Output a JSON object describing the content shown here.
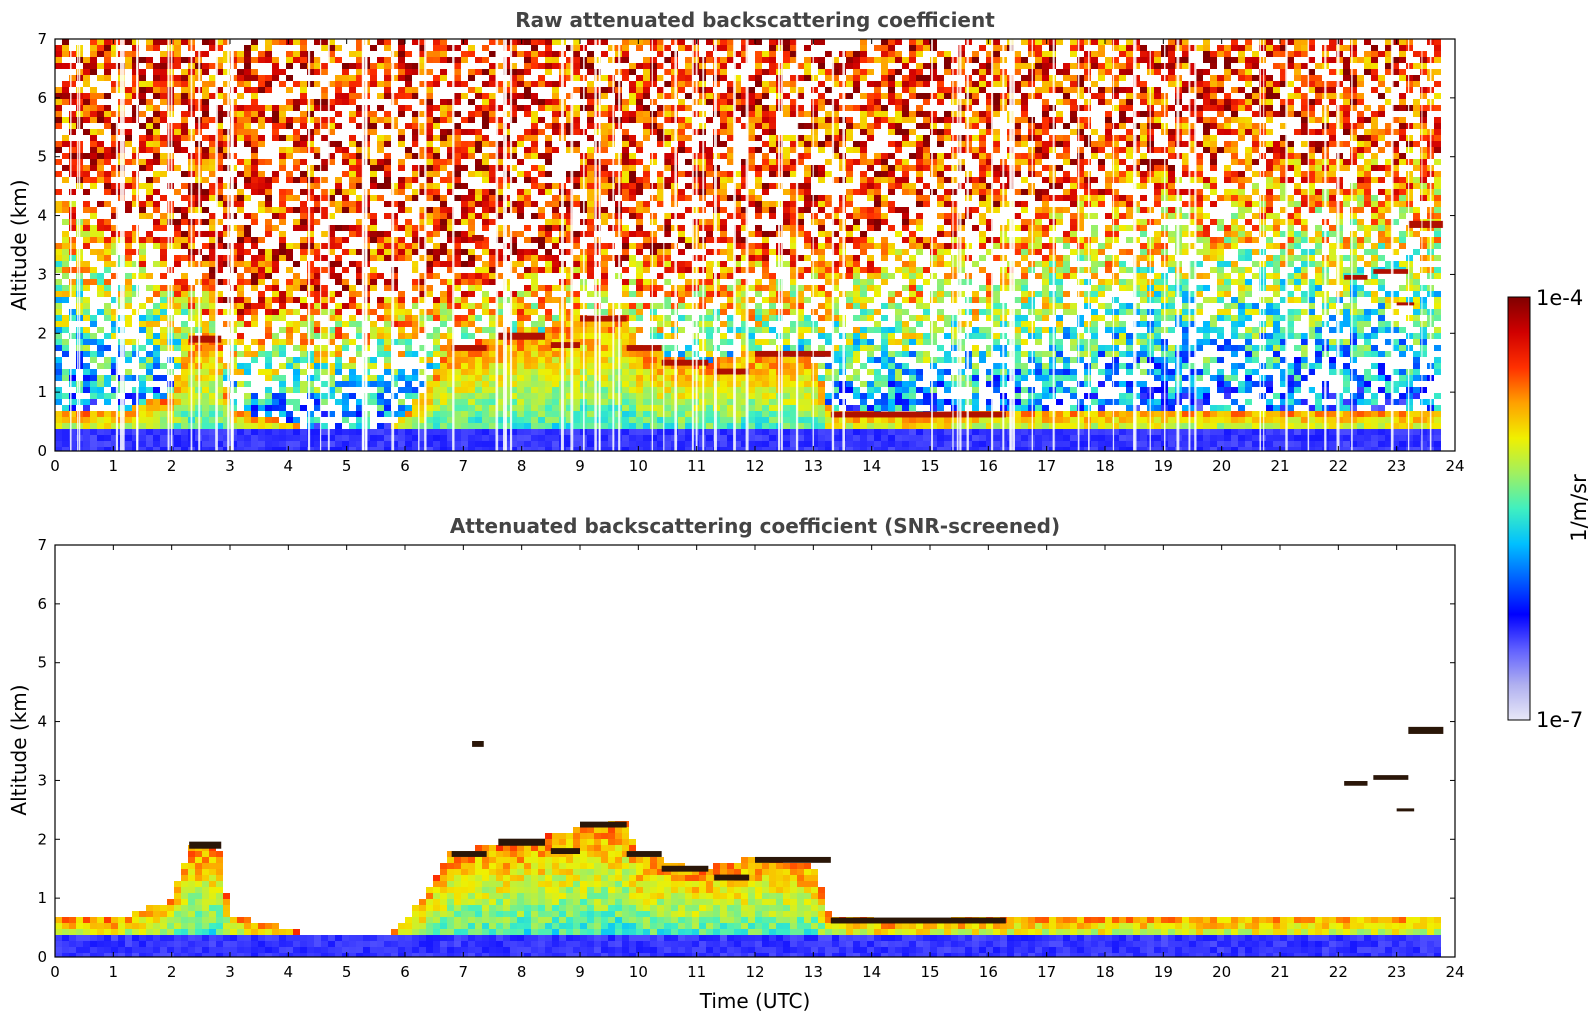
{
  "chart_data": [
    {
      "type": "heatmap",
      "title": "Raw attenuated backscattering coefficient",
      "xlabel": "",
      "ylabel": "Altitude (km)",
      "xlim": [
        0,
        24
      ],
      "ylim": [
        0,
        7
      ],
      "x_ticks": [
        "0",
        "1",
        "2",
        "3",
        "4",
        "5",
        "6",
        "7",
        "8",
        "9",
        "10",
        "11",
        "12",
        "13",
        "14",
        "15",
        "16",
        "17",
        "18",
        "19",
        "20",
        "21",
        "22",
        "23",
        "24"
      ],
      "y_ticks": [
        "0",
        "1",
        "2",
        "3",
        "4",
        "5",
        "6",
        "7"
      ],
      "background_trend": [
        [
          0,
          3.5
        ],
        [
          2,
          2.6
        ],
        [
          3,
          1.8
        ],
        [
          6,
          2.0
        ],
        [
          9,
          2.4
        ],
        [
          12,
          2.5
        ],
        [
          16,
          2.8
        ],
        [
          18,
          3.4
        ],
        [
          21,
          3.7
        ],
        [
          23.8,
          3.8
        ]
      ],
      "boundary_layer": [
        [
          0,
          0.7
        ],
        [
          1,
          0.65
        ],
        [
          2,
          0.95
        ],
        [
          2.3,
          1.9
        ],
        [
          2.8,
          1.9
        ],
        [
          3,
          0.7
        ],
        [
          4,
          0.5
        ],
        [
          4.8,
          0.1
        ],
        [
          5.5,
          0.1
        ],
        [
          6.3,
          1.0
        ],
        [
          6.8,
          1.8
        ],
        [
          8,
          1.95
        ],
        [
          9,
          2.2
        ],
        [
          9.8,
          2.3
        ],
        [
          10,
          1.75
        ],
        [
          11,
          1.5
        ],
        [
          12,
          1.7
        ],
        [
          13,
          1.6
        ],
        [
          13.3,
          0.65
        ],
        [
          15,
          0.6
        ],
        [
          16.3,
          0.7
        ]
      ],
      "clouds": [
        {
          "t0": 2.3,
          "t1": 2.85,
          "alt": 1.9,
          "thick": 0.12
        },
        {
          "t0": 7.15,
          "t1": 7.35,
          "alt": 3.62,
          "thick": 0.1
        },
        {
          "t0": 6.8,
          "t1": 7.4,
          "alt": 1.75,
          "thick": 0.1
        },
        {
          "t0": 7.6,
          "t1": 8.4,
          "alt": 1.95,
          "thick": 0.12
        },
        {
          "t0": 8.5,
          "t1": 9.0,
          "alt": 1.8,
          "thick": 0.1
        },
        {
          "t0": 9.0,
          "t1": 9.8,
          "alt": 2.25,
          "thick": 0.1
        },
        {
          "t0": 9.8,
          "t1": 10.4,
          "alt": 1.75,
          "thick": 0.1
        },
        {
          "t0": 10.4,
          "t1": 11.2,
          "alt": 1.5,
          "thick": 0.1
        },
        {
          "t0": 11.3,
          "t1": 11.9,
          "alt": 1.35,
          "thick": 0.1
        },
        {
          "t0": 12.0,
          "t1": 13.3,
          "alt": 1.65,
          "thick": 0.1
        },
        {
          "t0": 13.3,
          "t1": 16.3,
          "alt": 0.62,
          "thick": 0.1
        },
        {
          "t0": 22.1,
          "t1": 22.5,
          "alt": 2.95,
          "thick": 0.08
        },
        {
          "t0": 22.6,
          "t1": 23.2,
          "alt": 3.05,
          "thick": 0.08
        },
        {
          "t0": 23.2,
          "t1": 23.8,
          "alt": 3.85,
          "thick": 0.12
        },
        {
          "t0": 23.0,
          "t1": 23.3,
          "alt": 2.5,
          "thick": 0.05
        }
      ]
    },
    {
      "type": "heatmap",
      "title": "Attenuated backscattering coefficient (SNR-screened)",
      "xlabel": "Time (UTC)",
      "ylabel": "Altitude (km)",
      "xlim": [
        0,
        24
      ],
      "ylim": [
        0,
        7
      ],
      "x_ticks": [
        "0",
        "1",
        "2",
        "3",
        "4",
        "5",
        "6",
        "7",
        "8",
        "9",
        "10",
        "11",
        "12",
        "13",
        "14",
        "15",
        "16",
        "17",
        "18",
        "19",
        "20",
        "21",
        "22",
        "23",
        "24"
      ],
      "y_ticks": [
        "0",
        "1",
        "2",
        "3",
        "4",
        "5",
        "6",
        "7"
      ],
      "masked_above_signal": true,
      "clouds": [
        {
          "t0": 2.3,
          "t1": 2.85,
          "alt": 1.9,
          "thick": 0.12
        },
        {
          "t0": 7.15,
          "t1": 7.35,
          "alt": 3.62,
          "thick": 0.1
        },
        {
          "t0": 6.8,
          "t1": 7.4,
          "alt": 1.75,
          "thick": 0.1
        },
        {
          "t0": 7.6,
          "t1": 8.4,
          "alt": 1.95,
          "thick": 0.12
        },
        {
          "t0": 8.5,
          "t1": 9.0,
          "alt": 1.8,
          "thick": 0.1
        },
        {
          "t0": 9.0,
          "t1": 9.8,
          "alt": 2.25,
          "thick": 0.1
        },
        {
          "t0": 9.8,
          "t1": 10.4,
          "alt": 1.75,
          "thick": 0.1
        },
        {
          "t0": 10.4,
          "t1": 11.2,
          "alt": 1.5,
          "thick": 0.1
        },
        {
          "t0": 11.3,
          "t1": 11.9,
          "alt": 1.35,
          "thick": 0.1
        },
        {
          "t0": 12.0,
          "t1": 13.3,
          "alt": 1.65,
          "thick": 0.1
        },
        {
          "t0": 13.3,
          "t1": 16.3,
          "alt": 0.62,
          "thick": 0.1
        },
        {
          "t0": 22.1,
          "t1": 22.5,
          "alt": 2.95,
          "thick": 0.08
        },
        {
          "t0": 22.6,
          "t1": 23.2,
          "alt": 3.05,
          "thick": 0.08
        },
        {
          "t0": 23.2,
          "t1": 23.8,
          "alt": 3.85,
          "thick": 0.12
        },
        {
          "t0": 23.0,
          "t1": 23.3,
          "alt": 2.5,
          "thick": 0.05
        }
      ]
    }
  ],
  "colorbar": {
    "label": "1/m/sr",
    "max_label": "1e-4",
    "min_label": "1e-7",
    "colors": [
      "#e8e8f8",
      "#b0b0f0",
      "#6060ff",
      "#0000ff",
      "#0060ff",
      "#00c0ff",
      "#40f0c0",
      "#a0f060",
      "#f0f000",
      "#ffa000",
      "#ff3000",
      "#d00000",
      "#800000"
    ]
  }
}
